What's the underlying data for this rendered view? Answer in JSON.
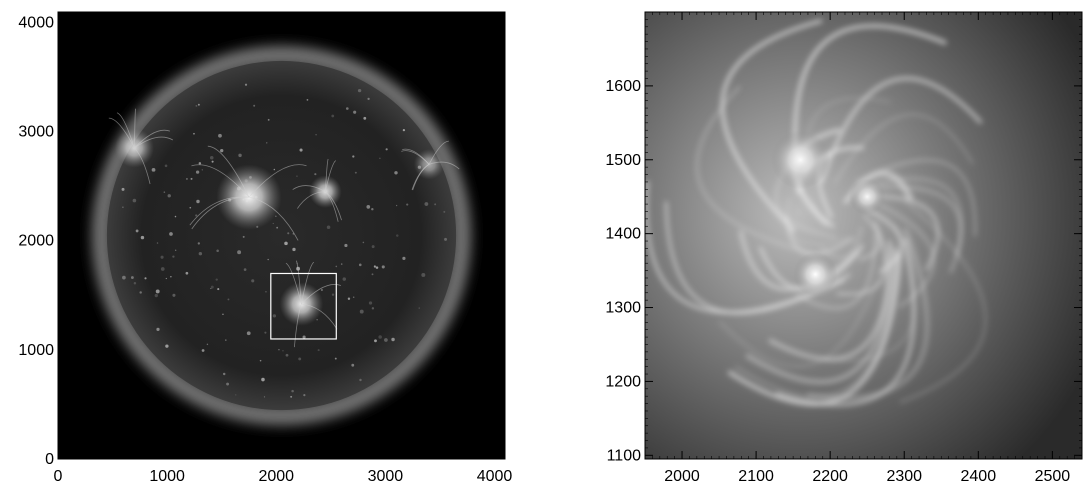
{
  "panels": [
    {
      "id": "full-disk",
      "kind": "solar-full-disk-image",
      "axis_color": "#000000",
      "background_color": "#000000",
      "x_axis": {
        "range": [
          0,
          4096
        ],
        "ticks": [
          0,
          1000,
          2000,
          3000,
          4000
        ]
      },
      "y_axis": {
        "range": [
          0,
          4096
        ],
        "ticks": [
          0,
          1000,
          2000,
          3000,
          4000
        ]
      },
      "solar_disk": {
        "center": [
          2048,
          2048
        ],
        "radius": 1600
      },
      "active_regions": [
        {
          "center": [
            1750,
            2400
          ],
          "size": 300,
          "brightness": 0.95
        },
        {
          "center": [
            2450,
            2450
          ],
          "size": 150,
          "brightness": 0.85
        },
        {
          "center": [
            2230,
            1420
          ],
          "size": 200,
          "brightness": 0.9
        },
        {
          "center": [
            700,
            2850
          ],
          "size": 180,
          "brightness": 0.8
        },
        {
          "center": [
            3400,
            2700
          ],
          "size": 140,
          "brightness": 0.6
        }
      ],
      "zoom_box": {
        "x": [
          1950,
          2550
        ],
        "y": [
          1100,
          1700
        ],
        "color": "#ffffff"
      }
    },
    {
      "id": "zoom",
      "kind": "solar-active-region-zoom",
      "axis_color": "#000000",
      "x_axis": {
        "range": [
          1950,
          2540
        ],
        "ticks": [
          2000,
          2100,
          2200,
          2300,
          2400,
          2500
        ]
      },
      "y_axis": {
        "range": [
          1095,
          1700
        ],
        "ticks": [
          1100,
          1200,
          1300,
          1400,
          1500,
          1600
        ]
      },
      "bright_cores": [
        {
          "center": [
            2160,
            1500
          ],
          "size": 40,
          "brightness": 0.95
        },
        {
          "center": [
            2180,
            1345
          ],
          "size": 30,
          "brightness": 1.0
        },
        {
          "center": [
            2250,
            1450
          ],
          "size": 25,
          "brightness": 0.9
        }
      ]
    }
  ]
}
